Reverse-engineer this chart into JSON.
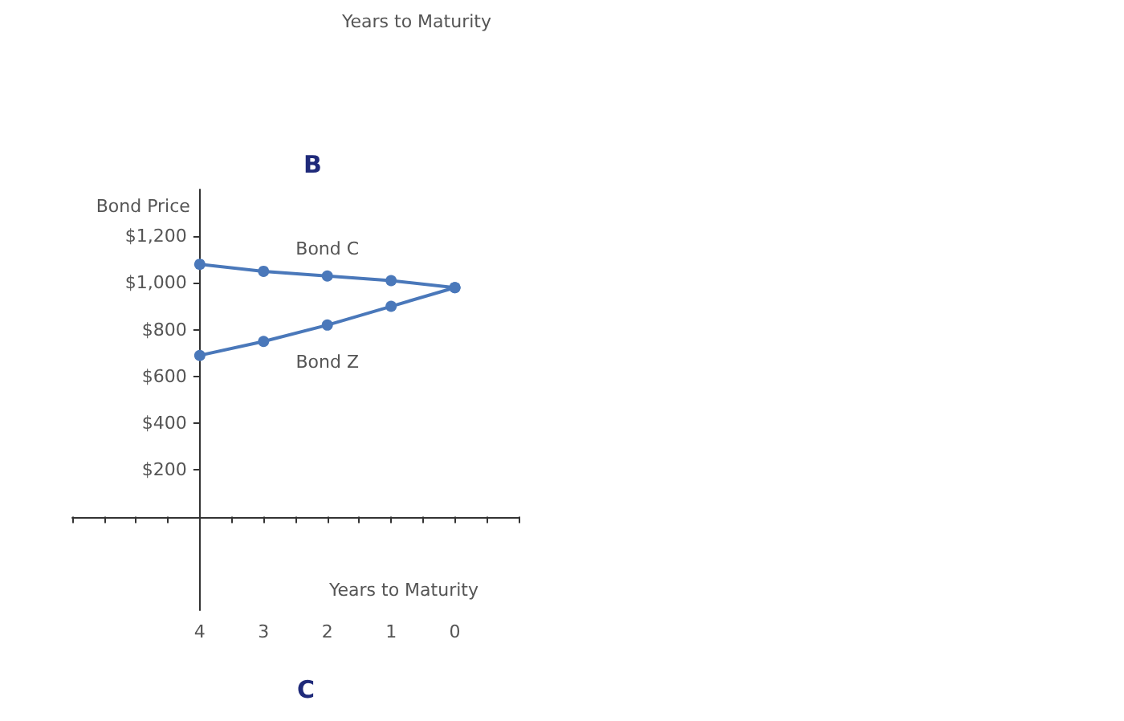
{
  "chart_data": {
    "type": "line",
    "title": "B",
    "xlabel": "Years to Maturity",
    "ylabel": "Bond Price",
    "x": [
      4,
      3,
      2,
      1,
      0
    ],
    "series": [
      {
        "name": "Bond C",
        "color": "#4a78ba",
        "values": [
          1080,
          1050,
          1030,
          1010,
          980
        ]
      },
      {
        "name": "Bond Z",
        "color": "#4a78ba",
        "values": [
          690,
          750,
          820,
          900,
          980
        ]
      }
    ],
    "xlim": [
      6,
      -1
    ],
    "xticks": [
      {
        "value": 6,
        "label": null
      },
      {
        "value": 5.5,
        "label": null
      },
      {
        "value": 5,
        "label": null
      },
      {
        "value": 4.5,
        "label": null
      },
      4,
      {
        "value": 3.5,
        "label": null
      },
      3,
      {
        "value": 2.5,
        "label": null
      },
      2,
      {
        "value": 1.5,
        "label": null
      },
      1,
      {
        "value": 0.5,
        "label": null
      },
      0,
      {
        "value": -0.5,
        "label": null
      },
      {
        "value": -1,
        "label": null
      }
    ],
    "ylim": [
      -400,
      1400
    ],
    "yticks": [
      {
        "value": 200,
        "label": "$200"
      },
      {
        "value": 400,
        "label": "$400"
      },
      {
        "value": 600,
        "label": "$600"
      },
      {
        "value": 800,
        "label": "$800"
      },
      {
        "value": 1000,
        "label": "$1,000"
      },
      {
        "value": 1200,
        "label": "$1,200"
      }
    ],
    "marker": "circle",
    "grid": false,
    "legend": false,
    "annotations": [
      "Years to Maturity",
      "C"
    ]
  }
}
